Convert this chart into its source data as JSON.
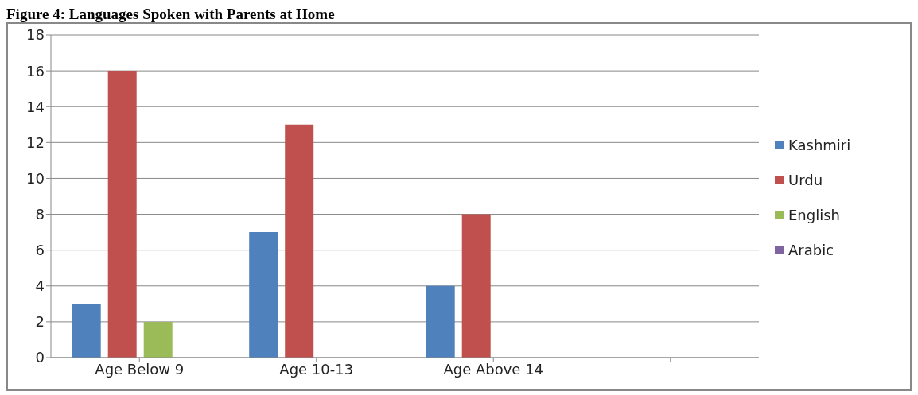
{
  "chart_data": {
    "type": "bar",
    "title": "Figure 4: Languages Spoken with Parents at Home",
    "categories": [
      "Age Below 9",
      "Age 10-13",
      "Age Above 14",
      null
    ],
    "series": [
      {
        "name": "Kashmiri",
        "color": "#4f81bd",
        "values": [
          3,
          7,
          4,
          null
        ]
      },
      {
        "name": "Urdu",
        "color": "#c0504d",
        "values": [
          16,
          13,
          8,
          null
        ]
      },
      {
        "name": "English",
        "color": "#9bbb59",
        "values": [
          2,
          0,
          0,
          null
        ]
      },
      {
        "name": "Arabic",
        "color": "#8064a2",
        "values": [
          0,
          0,
          0,
          null
        ]
      }
    ],
    "ylim": [
      0,
      18
    ],
    "yticks": [
      0,
      2,
      4,
      6,
      8,
      10,
      12,
      14,
      16,
      18
    ],
    "grid": "y",
    "legend": "right"
  }
}
